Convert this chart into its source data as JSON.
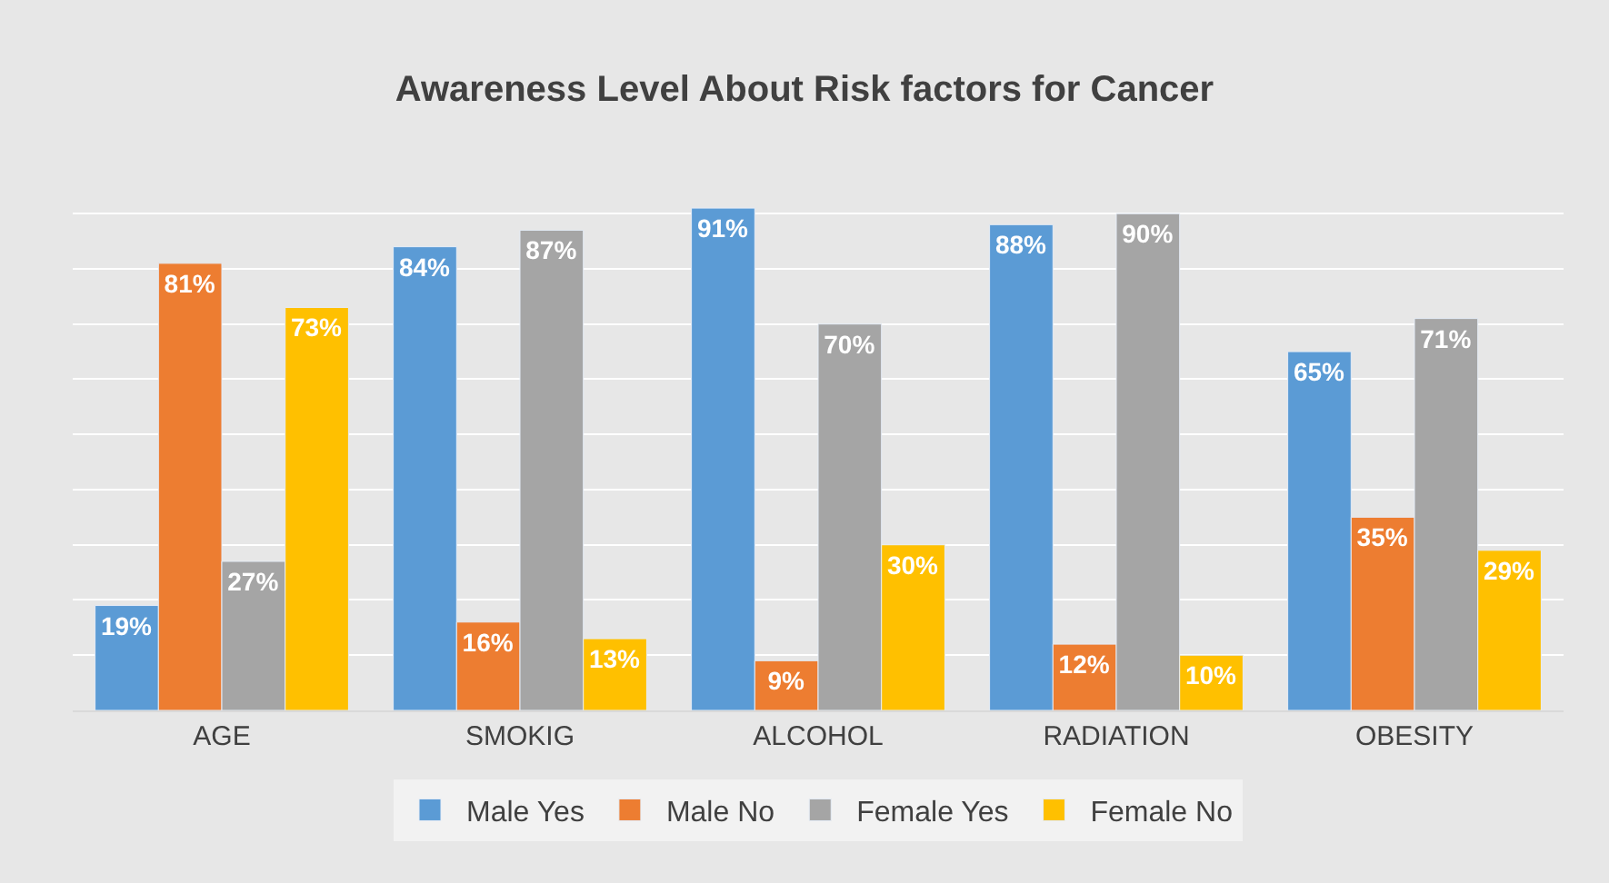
{
  "chart_data": {
    "type": "bar",
    "title": "Awareness Level About Risk factors for Cancer",
    "categories": [
      "AGE",
      "SMOKIG",
      "ALCOHOL",
      "RADIATION",
      "OBESITY"
    ],
    "series": [
      {
        "name": "Male Yes",
        "color": "#5b9bd5",
        "values": [
          19,
          84,
          91,
          88,
          65
        ],
        "value_labels": [
          "19%",
          "84%",
          "91%",
          "88%",
          "65%"
        ]
      },
      {
        "name": "Male No",
        "color": "#ed7d31",
        "values": [
          81,
          16,
          9,
          12,
          35
        ],
        "value_labels": [
          "81%",
          "16%",
          "9%",
          "12%",
          "35%"
        ]
      },
      {
        "name": "Female Yes",
        "color": "#a5a5a5",
        "values": [
          27,
          87,
          70,
          90,
          71
        ],
        "value_labels": [
          "27%",
          "87%",
          "70%",
          "90%",
          "71%"
        ]
      },
      {
        "name": "Female No",
        "color": "#ffc000",
        "values": [
          73,
          13,
          30,
          10,
          29
        ],
        "value_labels": [
          "73%",
          "13%",
          "30%",
          "10%",
          "29%"
        ]
      }
    ],
    "grid": "y",
    "legend": "bottom",
    "tick_labels": "x"
  }
}
